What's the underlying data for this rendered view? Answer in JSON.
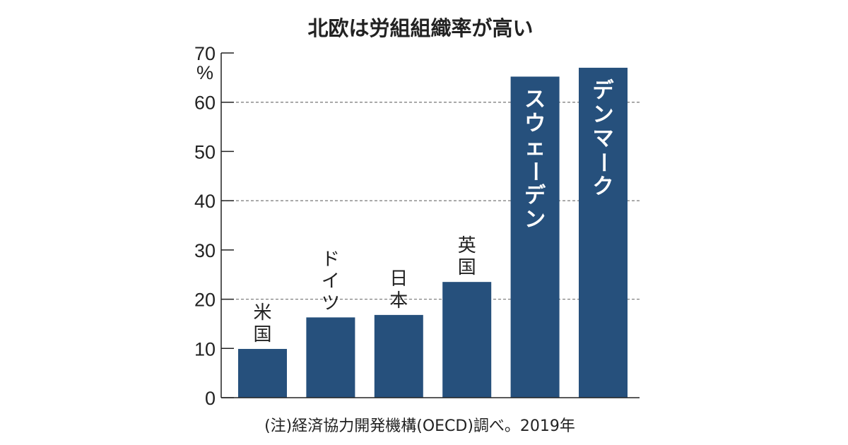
{
  "chart_data": {
    "type": "bar",
    "title": "北欧は労組組織率が高い",
    "unit": "%",
    "categories": [
      "米国",
      "ドイツ",
      "日本",
      "英国",
      "スウェーデン",
      "デンマーク"
    ],
    "values": [
      9.9,
      16.3,
      16.8,
      23.5,
      65.2,
      67.0
    ],
    "ylim": [
      0,
      70
    ],
    "yticks": [
      0,
      10,
      20,
      30,
      40,
      50,
      60,
      70
    ],
    "gridlines": [
      20,
      40,
      60
    ],
    "grid": "dashed horizontal at 20, 40, 60",
    "note": "(注)経済協力開発機構(OECD)調べ。2019年",
    "colors": {
      "bar": "#26507c",
      "text": "#222222",
      "grid": "#777777"
    }
  }
}
